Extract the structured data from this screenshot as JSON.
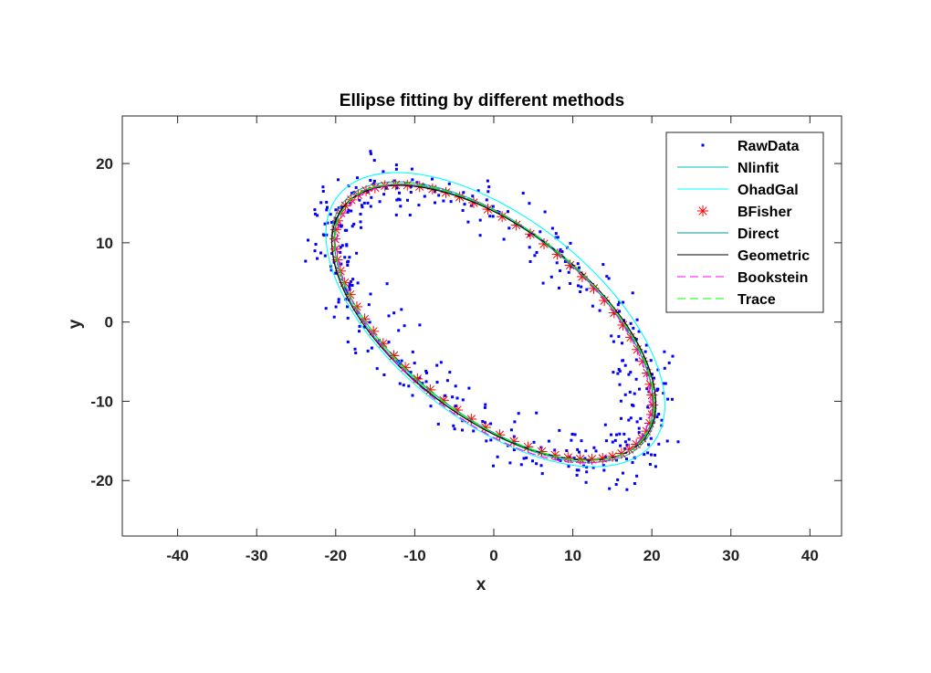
{
  "chart_data": {
    "type": "scatter",
    "title": "Ellipse fitting by different methods",
    "xlabel": "x",
    "ylabel": "y",
    "xlim": [
      -47,
      44
    ],
    "ylim": [
      -27,
      26
    ],
    "xticks": [
      -40,
      -30,
      -20,
      -10,
      0,
      10,
      20,
      30,
      40
    ],
    "yticks": [
      -20,
      -10,
      0,
      10,
      20
    ],
    "xtick_labels": [
      "-40",
      "-30",
      "-20",
      "-10",
      "0",
      "10",
      "20",
      "30",
      "40"
    ],
    "ytick_labels": [
      "-20",
      "-10",
      "0",
      "10",
      "20"
    ],
    "grid": false,
    "legend_position": "top-right",
    "series": [
      {
        "name": "RawData",
        "kind": "points",
        "color": "#0000ff",
        "center": [
          0,
          0
        ],
        "semi_major": 24.0,
        "semi_minor": 11.5,
        "angle_deg": -38,
        "count": 420,
        "noise": 2.6,
        "seed": 12345
      },
      {
        "name": "Nlinfit",
        "kind": "ellipse",
        "color": "#00bfbf",
        "dash": "",
        "center": [
          0.0,
          0.0
        ],
        "semi_major": 24.3,
        "semi_minor": 12.0,
        "angle_deg": -38
      },
      {
        "name": "OhadGal",
        "kind": "ellipse",
        "color": "#00ffff",
        "dash": "",
        "center": [
          0.2,
          0.3
        ],
        "semi_major": 25.3,
        "semi_minor": 12.8,
        "angle_deg": -38
      },
      {
        "name": "BFisher",
        "kind": "markers",
        "color": "#ff0000",
        "center": [
          0.0,
          0.0
        ],
        "semi_major": 23.8,
        "semi_minor": 11.7,
        "angle_deg": -38,
        "count": 70
      },
      {
        "name": "Direct",
        "kind": "ellipse",
        "color": "#009999",
        "dash": "",
        "center": [
          0.0,
          0.0
        ],
        "semi_major": 23.9,
        "semi_minor": 11.8,
        "angle_deg": -38
      },
      {
        "name": "Geometric",
        "kind": "ellipse",
        "color": "#000000",
        "dash": "",
        "center": [
          0.0,
          -0.1
        ],
        "semi_major": 24.0,
        "semi_minor": 12.0,
        "angle_deg": -37
      },
      {
        "name": "Bookstein",
        "kind": "ellipse",
        "color": "#ff00ff",
        "dash": "9 5",
        "center": [
          0.0,
          -0.2
        ],
        "semi_major": 23.6,
        "semi_minor": 12.1,
        "angle_deg": -39
      },
      {
        "name": "Trace",
        "kind": "ellipse",
        "color": "#00ff00",
        "dash": "9 5",
        "center": [
          0.1,
          0.0
        ],
        "semi_major": 23.9,
        "semi_minor": 11.9,
        "angle_deg": -38
      }
    ]
  }
}
